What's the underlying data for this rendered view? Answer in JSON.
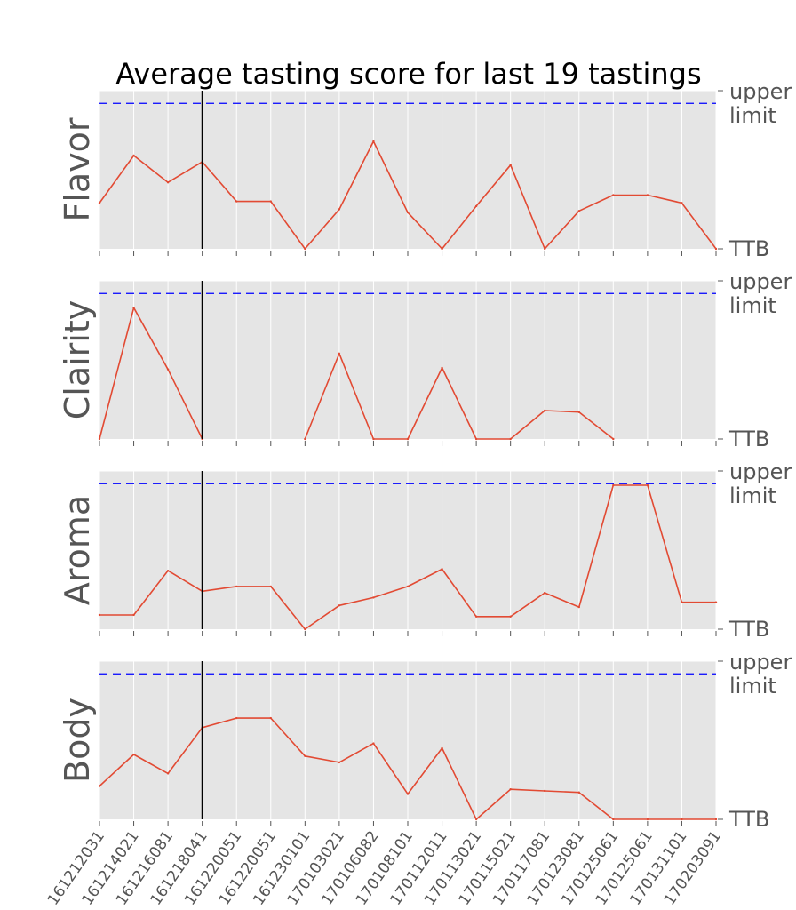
{
  "chart_data": {
    "type": "line",
    "title": "Average tasting score for last 19 tastings",
    "categories": [
      "161212031",
      "161214021",
      "161216081",
      "161218041",
      "161220051",
      "161220051",
      "161230101",
      "170103021",
      "170106082",
      "170108101",
      "170112011",
      "170113021",
      "170115021",
      "170117081",
      "170123081",
      "170125061",
      "170125061",
      "170131101",
      "170203091"
    ],
    "marker_index": 3,
    "reference": {
      "name": "upper limit",
      "value": 0.92
    },
    "ylim": [
      0,
      1
    ],
    "right_labels": {
      "top": [
        "upper",
        "limit"
      ],
      "bottom": "TTB"
    },
    "grid": true,
    "colors": {
      "line": "#e24a33",
      "reference": "#0000ff",
      "panel_bg": "#e5e5e5",
      "marker": "#000000"
    },
    "panels": [
      {
        "name": "Flavor",
        "values": [
          0.29,
          0.59,
          0.42,
          0.55,
          0.3,
          0.3,
          0.0,
          0.25,
          0.68,
          0.23,
          0.0,
          0.27,
          0.53,
          0.0,
          0.24,
          0.34,
          0.34,
          0.29,
          0.0
        ]
      },
      {
        "name": "Clairity",
        "values": [
          0.0,
          0.83,
          0.44,
          0.0,
          null,
          null,
          0.0,
          0.54,
          0.0,
          0.0,
          0.45,
          0.0,
          0.0,
          0.18,
          0.17,
          0.0,
          null,
          null,
          null
        ]
      },
      {
        "name": "Aroma",
        "values": [
          0.09,
          0.09,
          0.37,
          0.24,
          0.27,
          0.27,
          0.0,
          0.15,
          0.2,
          0.27,
          0.38,
          0.08,
          0.08,
          0.23,
          0.14,
          0.91,
          0.91,
          0.17,
          0.17
        ]
      },
      {
        "name": "Body",
        "values": [
          0.21,
          0.41,
          0.29,
          0.58,
          0.64,
          0.64,
          0.4,
          0.36,
          0.48,
          0.16,
          0.45,
          0.0,
          0.19,
          0.18,
          0.17,
          0.0,
          0.0,
          0.0,
          0.0
        ]
      }
    ]
  }
}
